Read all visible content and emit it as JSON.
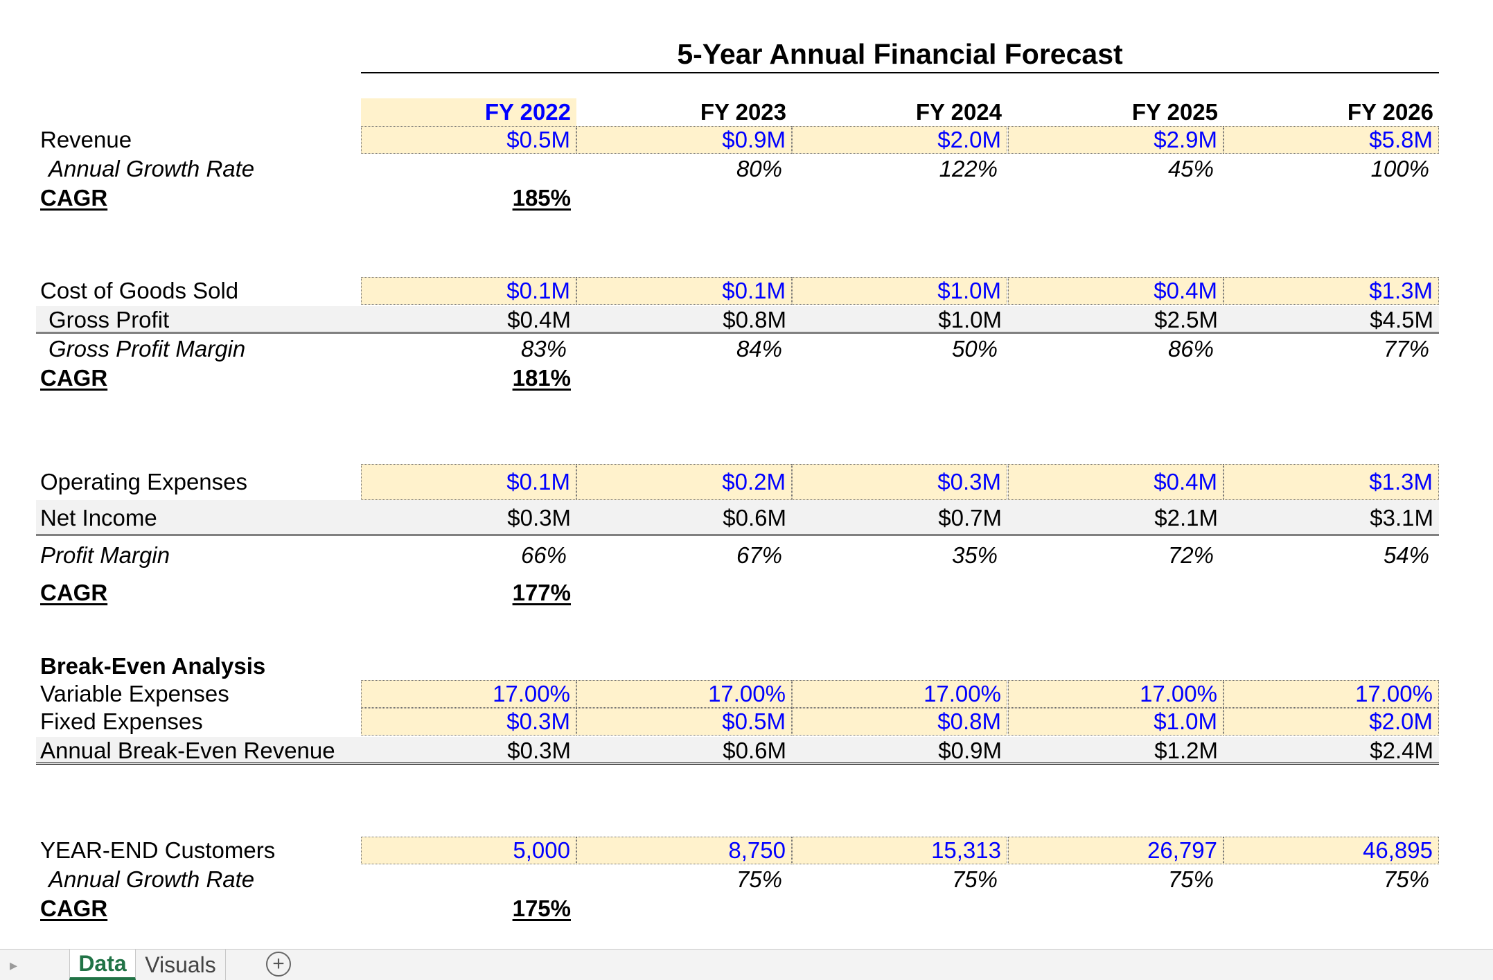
{
  "title": "5-Year Annual Financial Forecast",
  "years": [
    "FY 2022",
    "FY 2023",
    "FY 2024",
    "FY 2025",
    "FY 2026"
  ],
  "rows": {
    "revenue": {
      "label": "Revenue",
      "values": [
        "$0.5M",
        "$0.9M",
        "$2.0M",
        "$2.9M",
        "$5.8M"
      ]
    },
    "revenue_growth": {
      "label": "Annual Growth Rate",
      "values": [
        "",
        "80%",
        "122%",
        "45%",
        "100%"
      ]
    },
    "revenue_cagr": {
      "label": "CAGR",
      "value": "185%"
    },
    "cogs": {
      "label": "Cost of Goods Sold",
      "values": [
        "$0.1M",
        "$0.1M",
        "$1.0M",
        "$0.4M",
        "$1.3M"
      ]
    },
    "gross_profit": {
      "label": "Gross Profit",
      "values": [
        "$0.4M",
        "$0.8M",
        "$1.0M",
        "$2.5M",
        "$4.5M"
      ]
    },
    "gross_margin": {
      "label": "Gross Profit Margin",
      "values": [
        "83%",
        "84%",
        "50%",
        "86%",
        "77%"
      ]
    },
    "gross_cagr": {
      "label": "CAGR",
      "value": "181%"
    },
    "opex": {
      "label": "Operating Expenses",
      "values": [
        "$0.1M",
        "$0.2M",
        "$0.3M",
        "$0.4M",
        "$1.3M"
      ]
    },
    "net_income": {
      "label": "Net Income",
      "values": [
        "$0.3M",
        "$0.6M",
        "$0.7M",
        "$2.1M",
        "$3.1M"
      ]
    },
    "profit_margin": {
      "label": "Profit Margin",
      "values": [
        "66%",
        "67%",
        "35%",
        "72%",
        "54%"
      ]
    },
    "net_cagr": {
      "label": "CAGR",
      "value": "177%"
    },
    "breakeven_heading": {
      "label": "Break-Even Analysis"
    },
    "variable_expenses": {
      "label": "Variable Expenses",
      "values": [
        "17.00%",
        "17.00%",
        "17.00%",
        "17.00%",
        "17.00%"
      ]
    },
    "fixed_expenses": {
      "label": "Fixed Expenses",
      "values": [
        "$0.3M",
        "$0.5M",
        "$0.8M",
        "$1.0M",
        "$2.0M"
      ]
    },
    "breakeven_revenue": {
      "label": "Annual Break-Even Revenue",
      "values": [
        "$0.3M",
        "$0.6M",
        "$0.9M",
        "$1.2M",
        "$2.4M"
      ]
    },
    "customers": {
      "label": "YEAR-END Customers",
      "values": [
        "5,000",
        "8,750",
        "15,313",
        "26,797",
        "46,895"
      ]
    },
    "customer_growth": {
      "label": "Annual Growth Rate",
      "values": [
        "",
        "75%",
        "75%",
        "75%",
        "75%"
      ]
    },
    "customer_cagr": {
      "label": "CAGR",
      "value": "175%"
    }
  },
  "sheet_tabs": [
    {
      "label": "Data",
      "active": true
    },
    {
      "label": "Visuals",
      "active": false
    }
  ],
  "add_sheet_label": "+",
  "colors": {
    "input_fill": "#fff2cc",
    "input_text": "#0000ff",
    "total_fill": "#f2f2f2",
    "active_tab": "#217346"
  }
}
